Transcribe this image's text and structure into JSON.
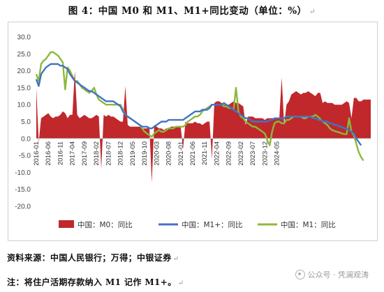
{
  "title": "图 4：中国 M0 和 M1、M1+同比变动（单位：%）",
  "source_note": "资料来源：中国人民银行；万得；中银证券",
  "footnote": "注：将住户活期存款纳入 M1 记作 M1+。",
  "watermark": "公众号 · 凭澜观涛",
  "paragraph_mark": "↵",
  "colors": {
    "m0": "#c0282c",
    "m1plus": "#4472c4",
    "m1": "#8cb83c"
  },
  "chart_data": {
    "type": "area",
    "title": "",
    "xlabel": "",
    "ylabel": "",
    "ylim": [
      -20,
      30
    ],
    "ytick_labels": [
      "30.0",
      "25.0",
      "20.0",
      "15.0",
      "10.0",
      "5.0",
      "0.0",
      "-5.0",
      "-10.0",
      "-15.0",
      "-20.0"
    ],
    "xtick_labels": [
      "2016-01",
      "2016-06",
      "2016-11",
      "2017-04",
      "2017-09",
      "2018-02",
      "2018-07",
      "2018-12",
      "2019-05",
      "2019-10",
      "2020-03",
      "2020-08",
      "2021-01",
      "2021-06",
      "2021-11",
      "2022-04",
      "2022-09",
      "2023-02",
      "2023-07",
      "2023-12",
      "2024-05"
    ],
    "legend_position": "bottom",
    "grid": false,
    "x_start": "2016-01",
    "x_step": "1 month",
    "series": [
      {
        "name": "中国：M0：同比",
        "type": "area",
        "values": [
          15,
          -1,
          6,
          6.5,
          7,
          7.5,
          6.5,
          6,
          6.5,
          6.5,
          7,
          8,
          7.5,
          6,
          7,
          7,
          20,
          7,
          6,
          6.5,
          7,
          6.5,
          6,
          6,
          6.5,
          7,
          6.5,
          -9,
          7,
          6.5,
          7,
          6.5,
          6.5,
          6,
          5.5,
          5,
          5,
          15.5,
          4,
          3.5,
          3.5,
          3.5,
          3.5,
          3.5,
          3,
          3,
          3,
          3.5,
          -13,
          4,
          3.5,
          3,
          3,
          2.5,
          3,
          3,
          3.5,
          3.5,
          3.5,
          3.5,
          3.5,
          -3,
          5,
          4.5,
          4.5,
          4.5,
          5,
          4.5,
          4.5,
          4,
          4.5,
          5,
          5,
          -6,
          10.5,
          11,
          11,
          10.5,
          10,
          10,
          10,
          10.5,
          11,
          10.5,
          10.5,
          10,
          9.5,
          4,
          6.5,
          6.5,
          6.5,
          6,
          6,
          6,
          6,
          5.5,
          6,
          6,
          6,
          6,
          6,
          6,
          18,
          4,
          10,
          11,
          13,
          13.5,
          14,
          13.5,
          13,
          13.5,
          13.5,
          14,
          13.5,
          13,
          12.5,
          13.5,
          13.5,
          10.5,
          11,
          10.5,
          10.5,
          10.5,
          10,
          10,
          10,
          10,
          10.5,
          11,
          10.5,
          6,
          12,
          12,
          11,
          11,
          11.5,
          11.5,
          11.5,
          11.5
        ]
      },
      {
        "name": "中国：M1+：同比",
        "type": "line",
        "values": [
          17.5,
          15.5,
          19,
          20,
          21,
          21.5,
          22,
          22,
          22,
          22,
          21.5,
          21.5,
          21,
          20.5,
          19,
          18,
          17,
          16.5,
          16,
          15.5,
          15,
          14.5,
          14,
          14,
          13.5,
          13,
          12.5,
          12,
          11.5,
          11,
          11,
          11,
          11,
          10.5,
          10,
          9.5,
          8,
          7,
          6.5,
          6,
          5.5,
          5,
          4.5,
          4,
          3.5,
          3.5,
          3.5,
          3,
          3,
          3.5,
          4,
          4.5,
          5,
          5,
          5,
          5.5,
          5.5,
          5.5,
          5.5,
          5.5,
          5.5,
          5.5,
          6,
          6.5,
          7,
          7.5,
          8,
          8,
          8,
          8.5,
          8.5,
          8.5,
          9,
          10,
          10,
          10,
          10,
          10,
          10.5,
          10,
          9.5,
          9,
          8.5,
          8,
          7.5,
          7,
          6.5,
          6,
          6,
          5.5,
          5,
          5,
          5,
          5,
          5,
          5,
          5,
          5.5,
          5.5,
          6,
          6,
          6,
          6,
          6,
          6.5,
          6.5,
          6.5,
          6.5,
          6.5,
          6.5,
          6.5,
          6.5,
          6.5,
          6.5,
          6.5,
          6,
          6,
          5.5,
          5.5,
          5,
          5,
          5,
          4.5,
          4.5,
          4,
          4,
          3.5,
          3.5,
          3,
          3,
          2.5,
          2,
          1.5,
          0,
          -1,
          -2
        ]
      },
      {
        "name": "中国：M1：同比",
        "type": "line",
        "values": [
          19,
          17,
          22,
          23,
          23.5,
          24.5,
          25.5,
          25.5,
          25,
          24.5,
          23.5,
          22.5,
          14.5,
          21,
          20,
          18.5,
          17,
          17,
          16,
          15,
          14.5,
          14,
          13.5,
          14,
          15,
          13,
          11.5,
          11,
          10.5,
          10,
          10,
          10,
          10,
          10,
          10,
          10,
          8.5,
          7,
          6.5,
          6,
          5.5,
          5,
          4.5,
          4,
          3,
          2,
          1.5,
          1,
          0.5,
          1.5,
          2,
          2.5,
          2,
          2,
          2.5,
          3,
          3,
          3,
          3.5,
          3.5,
          3.5,
          3.5,
          4,
          5,
          5.5,
          6,
          6.5,
          6.5,
          7,
          8,
          8.5,
          9,
          9.5,
          10,
          10,
          10,
          10,
          10,
          9.5,
          9.5,
          9,
          9,
          8.5,
          15,
          8,
          6.5,
          6,
          5,
          4.5,
          4,
          3.5,
          3.5,
          3,
          2.5,
          2,
          1.5,
          -0.5,
          -2,
          2,
          4.5,
          5,
          5,
          4.5,
          4.5,
          5.5,
          5.5,
          6,
          6.5,
          6.5,
          6.5,
          6.5,
          6,
          6,
          6.5,
          6.5,
          6.5,
          7,
          6.5,
          5.8,
          5,
          4.5,
          4,
          3,
          2.5,
          2.2,
          2,
          1.8,
          1.5,
          1.3,
          1.3,
          6,
          2,
          1,
          -1.5,
          -4,
          -5.5,
          -6.5
        ]
      }
    ]
  }
}
